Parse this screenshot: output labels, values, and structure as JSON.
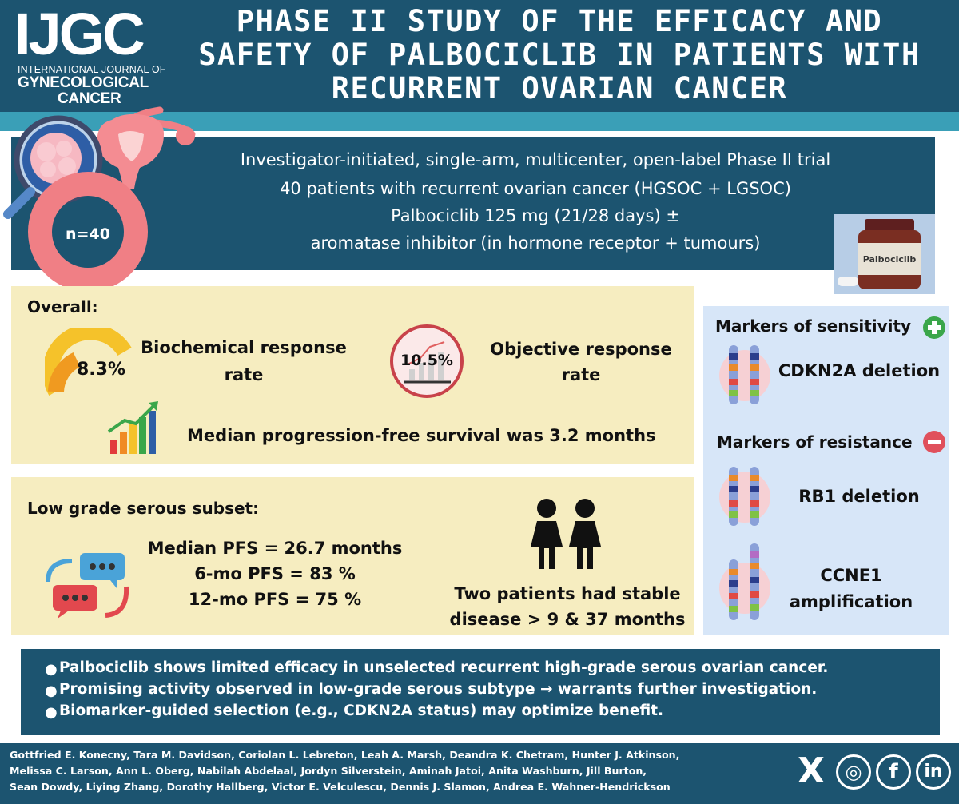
{
  "header": {
    "logo": "IJGC",
    "logo_sub1": "INTERNATIONAL JOURNAL OF",
    "logo_sub2": "GYNECOLOGICAL",
    "logo_sub3": "CANCER",
    "title": "PHASE II STUDY OF THE EFFICACY AND\nSAFETY OF PALBOCICLIB IN PATIENTS WITH\nRECURRENT OVARIAN CANCER"
  },
  "design": {
    "n_label": "n=40",
    "lines": [
      "Investigator-initiated, single-arm, multicenter, open-label Phase II trial",
      "40 patients with recurrent ovarian cancer (HGSOC + LGSOC)",
      "Palbociclib 125 mg (21/28 days) ±",
      "aromatase inhibitor (in hormone receptor + tumours)"
    ],
    "bottle_label": "Palbociclib"
  },
  "overall": {
    "title": "Overall:",
    "biochemical_value": "8.3%",
    "biochemical_label_1": "Biochemical response",
    "biochemical_label_2": "rate",
    "objective_value": "10.5%",
    "objective_label_1": "Objective response",
    "objective_label_2": "rate",
    "pfs_text": "Median progression-free survival was 3.2 months"
  },
  "low_grade": {
    "title": "Low grade serous subset:",
    "pfs_lines": [
      "Median PFS = 26.7 months",
      "6-mo PFS = 83 %",
      "12-mo PFS = 75 %"
    ],
    "stable_1": "Two patients had stable",
    "stable_2": "disease > 9 & 37 months"
  },
  "markers": {
    "sensitivity_title": "Markers of sensitivity",
    "sensitivity_item": "CDKN2A deletion",
    "resistance_title": "Markers of resistance",
    "resistance_item_1": "RB1 deletion",
    "resistance_item_2a": "CCNE1",
    "resistance_item_2b": "amplification"
  },
  "conclusions": [
    "Palbociclib shows limited efficacy in unselected recurrent high-grade serous ovarian cancer.",
    "Promising activity observed in low-grade serous subtype → warrants further investigation.",
    "Biomarker-guided selection (e.g., CDKN2A status) may optimize benefit."
  ],
  "authors": [
    "Gottfried E. Konecny, Tara M. Davidson, Coriolan L. Lebreton, Leah A. Marsh, Deandra K. Chetram, Hunter J. Atkinson,",
    "Melissa C. Larson, Ann L. Oberg, Nabilah Abdelaal, Jordyn Silverstein, Aminah Jatoi, Anita Washburn, Jill Burton,",
    "Sean Dowdy, Liying Zhang, Dorothy Hallberg, Victor E. Velculescu, Dennis J. Slamon, Andrea E. Wahner-Hendrickson"
  ],
  "social": {
    "x": "X",
    "instagram": "◎",
    "facebook": "f",
    "linkedin": "in"
  },
  "colors": {
    "navy": "#1c5470",
    "teal": "#3a9fb7",
    "beige": "#f6edc0",
    "lightblue": "#d7e6f8",
    "coral": "#f07f85",
    "gauge": "#f5c22a",
    "plus": "#3aa64a",
    "minus": "#e0505c"
  }
}
